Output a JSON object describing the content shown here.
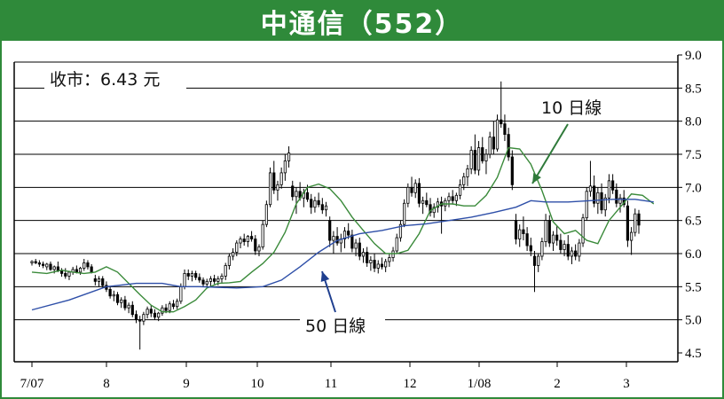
{
  "title": "中通信（552）",
  "chart_data": {
    "type": "candlestick",
    "title": "中通信（552）",
    "close_label": "收市：6.43 元",
    "ylim": [
      4.5,
      9.0
    ],
    "y_ticks": [
      "9.0",
      "8.5",
      "8.0",
      "7.5",
      "7.0",
      "6.5",
      "6.0",
      "5.5",
      "5.0",
      "4.5"
    ],
    "y_tick_values": [
      9.0,
      8.5,
      8.0,
      7.5,
      7.0,
      6.5,
      6.0,
      5.5,
      5.0,
      4.5
    ],
    "x_ticks": [
      "7/07",
      "8",
      "9",
      "10",
      "11",
      "12",
      "1/08",
      "2",
      "3"
    ],
    "grid": "horizontal",
    "series": [
      {
        "name": "10 日線",
        "color": "#3a8a3a",
        "values": [
          [
            0,
            5.72
          ],
          [
            4,
            5.7
          ],
          [
            8,
            5.75
          ],
          [
            11,
            5.72
          ],
          [
            14,
            5.7
          ],
          [
            17,
            5.72
          ],
          [
            20,
            5.8
          ],
          [
            23,
            5.72
          ],
          [
            26,
            5.55
          ],
          [
            29,
            5.38
          ],
          [
            32,
            5.22
          ],
          [
            35,
            5.12
          ],
          [
            38,
            5.12
          ],
          [
            41,
            5.2
          ],
          [
            44,
            5.3
          ],
          [
            47,
            5.48
          ],
          [
            50,
            5.55
          ],
          [
            53,
            5.56
          ],
          [
            56,
            5.58
          ],
          [
            59,
            5.72
          ],
          [
            62,
            5.85
          ],
          [
            65,
            6.02
          ],
          [
            68,
            6.32
          ],
          [
            71,
            6.75
          ],
          [
            74,
            7.0
          ],
          [
            77,
            7.05
          ],
          [
            80,
            6.98
          ],
          [
            83,
            6.8
          ],
          [
            86,
            6.55
          ],
          [
            89,
            6.35
          ],
          [
            92,
            6.15
          ],
          [
            95,
            6.0
          ],
          [
            98,
            6.0
          ],
          [
            101,
            6.05
          ],
          [
            104,
            6.3
          ],
          [
            107,
            6.65
          ],
          [
            110,
            6.75
          ],
          [
            113,
            6.75
          ],
          [
            116,
            6.72
          ],
          [
            119,
            6.72
          ],
          [
            122,
            6.88
          ],
          [
            125,
            7.15
          ],
          [
            128,
            7.6
          ],
          [
            131,
            7.58
          ],
          [
            134,
            7.35
          ],
          [
            137,
            6.95
          ],
          [
            140,
            6.48
          ],
          [
            143,
            6.3
          ],
          [
            146,
            6.35
          ],
          [
            149,
            6.2
          ],
          [
            152,
            6.15
          ],
          [
            155,
            6.5
          ],
          [
            158,
            6.7
          ],
          [
            161,
            6.9
          ],
          [
            164,
            6.88
          ],
          [
            167,
            6.75
          ]
        ]
      },
      {
        "name": "50 日線",
        "color": "#2e4fa8",
        "values": [
          [
            0,
            5.15
          ],
          [
            10,
            5.3
          ],
          [
            20,
            5.5
          ],
          [
            28,
            5.55
          ],
          [
            35,
            5.55
          ],
          [
            40,
            5.5
          ],
          [
            45,
            5.5
          ],
          [
            55,
            5.48
          ],
          [
            62,
            5.5
          ],
          [
            67,
            5.6
          ],
          [
            72,
            5.8
          ],
          [
            77,
            6.02
          ],
          [
            82,
            6.2
          ],
          [
            88,
            6.3
          ],
          [
            94,
            6.35
          ],
          [
            100,
            6.42
          ],
          [
            106,
            6.45
          ],
          [
            112,
            6.5
          ],
          [
            118,
            6.55
          ],
          [
            124,
            6.62
          ],
          [
            130,
            6.7
          ],
          [
            134,
            6.8
          ],
          [
            138,
            6.78
          ],
          [
            144,
            6.78
          ],
          [
            150,
            6.8
          ],
          [
            156,
            6.82
          ],
          [
            162,
            6.82
          ],
          [
            167,
            6.78
          ]
        ]
      }
    ],
    "candles": [
      [
        5.86,
        5.9,
        5.82,
        5.88
      ],
      [
        5.88,
        5.92,
        5.84,
        5.86
      ],
      [
        5.86,
        5.9,
        5.8,
        5.84
      ],
      [
        5.84,
        5.88,
        5.78,
        5.82
      ],
      [
        5.8,
        5.86,
        5.75,
        5.84
      ],
      [
        5.84,
        5.88,
        5.74,
        5.76
      ],
      [
        5.76,
        5.82,
        5.7,
        5.8
      ],
      [
        5.8,
        5.88,
        5.72,
        5.74
      ],
      [
        5.74,
        5.78,
        5.65,
        5.7
      ],
      [
        5.7,
        5.78,
        5.62,
        5.66
      ],
      [
        5.66,
        5.74,
        5.6,
        5.72
      ],
      [
        5.72,
        5.8,
        5.68,
        5.76
      ],
      [
        5.76,
        5.82,
        5.7,
        5.72
      ],
      [
        5.72,
        5.8,
        5.68,
        5.78
      ],
      [
        5.78,
        5.92,
        5.74,
        5.86
      ],
      [
        5.86,
        5.9,
        5.76,
        5.8
      ],
      [
        5.8,
        5.84,
        5.7,
        5.72
      ],
      [
        5.62,
        5.68,
        5.52,
        5.58
      ],
      [
        5.58,
        5.66,
        5.5,
        5.62
      ],
      [
        5.62,
        5.66,
        5.48,
        5.52
      ],
      [
        5.52,
        5.58,
        5.42,
        5.46
      ],
      [
        5.46,
        5.5,
        5.32,
        5.36
      ],
      [
        5.36,
        5.44,
        5.28,
        5.38
      ],
      [
        5.38,
        5.42,
        5.22,
        5.26
      ],
      [
        5.26,
        5.34,
        5.18,
        5.3
      ],
      [
        5.3,
        5.36,
        5.14,
        5.18
      ],
      [
        5.18,
        5.26,
        5.1,
        5.22
      ],
      [
        5.22,
        5.28,
        5.04,
        5.08
      ],
      [
        5.08,
        5.14,
        4.95,
        5.0
      ],
      [
        5.0,
        5.06,
        4.55,
        4.98
      ],
      [
        4.98,
        5.12,
        4.92,
        5.08
      ],
      [
        5.08,
        5.2,
        5.02,
        5.16
      ],
      [
        5.16,
        5.22,
        5.04,
        5.1
      ],
      [
        5.1,
        5.16,
        5.0,
        5.04
      ],
      [
        5.04,
        5.12,
        4.98,
        5.1
      ],
      [
        5.1,
        5.22,
        5.06,
        5.18
      ],
      [
        5.18,
        5.24,
        5.1,
        5.14
      ],
      [
        5.14,
        5.28,
        5.1,
        5.24
      ],
      [
        5.24,
        5.3,
        5.16,
        5.2
      ],
      [
        5.2,
        5.32,
        5.16,
        5.28
      ],
      [
        5.28,
        5.55,
        5.24,
        5.5
      ],
      [
        5.5,
        5.76,
        5.46,
        5.7
      ],
      [
        5.7,
        5.76,
        5.6,
        5.66
      ],
      [
        5.66,
        5.74,
        5.58,
        5.7
      ],
      [
        5.7,
        5.74,
        5.6,
        5.64
      ],
      [
        5.64,
        5.7,
        5.56,
        5.6
      ],
      [
        5.6,
        5.64,
        5.5,
        5.54
      ],
      [
        5.54,
        5.62,
        5.48,
        5.58
      ],
      [
        5.58,
        5.66,
        5.5,
        5.62
      ],
      [
        5.62,
        5.68,
        5.54,
        5.58
      ],
      [
        5.58,
        5.66,
        5.52,
        5.62
      ],
      [
        5.62,
        5.7,
        5.56,
        5.66
      ],
      [
        5.66,
        5.86,
        5.6,
        5.82
      ],
      [
        5.82,
        6.0,
        5.76,
        5.96
      ],
      [
        5.96,
        6.08,
        5.9,
        6.02
      ],
      [
        6.02,
        6.2,
        5.96,
        6.16
      ],
      [
        6.16,
        6.26,
        6.08,
        6.22
      ],
      [
        6.22,
        6.3,
        6.12,
        6.18
      ],
      [
        6.18,
        6.28,
        6.1,
        6.26
      ],
      [
        6.26,
        6.34,
        6.18,
        6.22
      ],
      [
        6.22,
        6.28,
        5.98,
        6.04
      ],
      [
        6.04,
        6.14,
        5.96,
        6.1
      ],
      [
        6.1,
        6.5,
        6.06,
        6.44
      ],
      [
        6.44,
        6.8,
        6.4,
        6.74
      ],
      [
        6.74,
        7.3,
        6.7,
        7.22
      ],
      [
        7.22,
        7.4,
        6.9,
        6.96
      ],
      [
        6.96,
        7.1,
        6.8,
        7.04
      ],
      [
        7.04,
        7.3,
        6.98,
        7.22
      ],
      [
        7.22,
        7.5,
        7.1,
        7.4
      ],
      [
        7.4,
        7.62,
        7.3,
        7.52
      ],
      [
        7.02,
        7.1,
        6.8,
        6.86
      ],
      [
        6.86,
        7.0,
        6.6,
        6.94
      ],
      [
        6.94,
        7.08,
        6.8,
        6.84
      ],
      [
        6.84,
        6.98,
        6.7,
        6.92
      ],
      [
        6.92,
        7.04,
        6.78,
        6.82
      ],
      [
        6.82,
        6.9,
        6.6,
        6.7
      ],
      [
        6.7,
        6.86,
        6.62,
        6.8
      ],
      [
        6.8,
        6.92,
        6.7,
        6.74
      ],
      [
        6.74,
        6.84,
        6.6,
        6.66
      ],
      [
        6.66,
        6.78,
        6.56,
        6.72
      ],
      [
        6.5,
        6.56,
        6.1,
        6.2
      ],
      [
        6.2,
        6.34,
        6.0,
        6.26
      ],
      [
        6.26,
        6.4,
        6.12,
        6.16
      ],
      [
        6.16,
        6.3,
        6.02,
        6.22
      ],
      [
        6.22,
        6.4,
        6.08,
        6.34
      ],
      [
        6.34,
        6.46,
        6.22,
        6.28
      ],
      [
        6.28,
        6.36,
        6.02,
        6.08
      ],
      [
        6.08,
        6.22,
        5.96,
        6.16
      ],
      [
        6.16,
        6.24,
        5.9,
        5.96
      ],
      [
        5.96,
        6.08,
        5.86,
        6.02
      ],
      [
        6.02,
        6.1,
        5.8,
        5.86
      ],
      [
        5.86,
        5.96,
        5.74,
        5.9
      ],
      [
        5.9,
        6.0,
        5.72,
        5.78
      ],
      [
        5.78,
        5.9,
        5.7,
        5.84
      ],
      [
        5.84,
        5.94,
        5.76,
        5.8
      ],
      [
        5.8,
        5.92,
        5.72,
        5.88
      ],
      [
        5.88,
        6.0,
        5.8,
        5.94
      ],
      [
        5.94,
        6.1,
        5.88,
        6.04
      ],
      [
        6.04,
        6.3,
        6.0,
        6.24
      ],
      [
        6.24,
        6.5,
        6.18,
        6.44
      ],
      [
        6.44,
        6.82,
        6.4,
        6.76
      ],
      [
        6.76,
        7.06,
        6.7,
        7.0
      ],
      [
        7.0,
        7.16,
        6.86,
        6.92
      ],
      [
        6.92,
        7.12,
        6.84,
        7.06
      ],
      [
        7.06,
        7.14,
        6.7,
        6.76
      ],
      [
        6.76,
        6.86,
        6.6,
        6.8
      ],
      [
        6.8,
        6.92,
        6.7,
        6.74
      ],
      [
        6.74,
        6.84,
        6.56,
        6.62
      ],
      [
        6.62,
        6.76,
        6.54,
        6.7
      ],
      [
        6.7,
        6.84,
        6.62,
        6.78
      ],
      [
        6.78,
        6.86,
        6.3,
        6.72
      ],
      [
        6.72,
        6.84,
        6.64,
        6.8
      ],
      [
        6.8,
        6.92,
        6.7,
        6.86
      ],
      [
        6.86,
        6.96,
        6.74,
        6.8
      ],
      [
        6.8,
        6.92,
        6.72,
        6.88
      ],
      [
        6.88,
        7.12,
        6.82,
        7.04
      ],
      [
        7.04,
        7.22,
        6.96,
        7.16
      ],
      [
        7.16,
        7.34,
        7.02,
        7.28
      ],
      [
        7.28,
        7.62,
        7.2,
        7.56
      ],
      [
        7.56,
        7.8,
        7.2,
        7.26
      ],
      [
        7.26,
        7.7,
        7.18,
        7.6
      ],
      [
        7.6,
        7.76,
        7.36,
        7.4
      ],
      [
        7.4,
        7.58,
        7.2,
        7.5
      ],
      [
        7.5,
        7.84,
        7.44,
        7.76
      ],
      [
        7.76,
        8.0,
        7.5,
        7.58
      ],
      [
        7.58,
        8.1,
        7.54,
        8.02
      ],
      [
        8.02,
        8.6,
        7.9,
        7.96
      ],
      [
        7.96,
        8.1,
        7.7,
        7.8
      ],
      [
        7.8,
        7.9,
        7.4,
        7.46
      ],
      [
        7.46,
        7.56,
        6.96,
        7.04
      ],
      [
        6.5,
        6.6,
        6.14,
        6.22
      ],
      [
        6.22,
        6.44,
        6.1,
        6.36
      ],
      [
        6.36,
        6.56,
        6.2,
        6.3
      ],
      [
        6.3,
        6.4,
        6.04,
        6.12
      ],
      [
        6.12,
        6.24,
        5.96,
        6.04
      ],
      [
        5.96,
        6.04,
        5.42,
        5.82
      ],
      [
        5.82,
        6.0,
        5.72,
        5.96
      ],
      [
        5.96,
        6.24,
        5.9,
        6.18
      ],
      [
        6.18,
        6.6,
        6.1,
        6.5
      ],
      [
        6.5,
        6.58,
        6.1,
        6.16
      ],
      [
        6.16,
        6.34,
        6.04,
        6.28
      ],
      [
        6.28,
        6.42,
        6.12,
        6.2
      ],
      [
        6.2,
        6.3,
        6.0,
        6.06
      ],
      [
        6.06,
        6.2,
        5.96,
        6.14
      ],
      [
        6.14,
        6.28,
        5.9,
        5.96
      ],
      [
        5.96,
        6.1,
        5.84,
        6.04
      ],
      [
        6.04,
        6.14,
        5.9,
        5.96
      ],
      [
        5.96,
        6.22,
        5.88,
        6.16
      ],
      [
        6.16,
        6.6,
        6.1,
        6.54
      ],
      [
        6.54,
        7.0,
        6.5,
        6.94
      ],
      [
        6.94,
        7.4,
        6.86,
        7.02
      ],
      [
        7.02,
        7.18,
        6.7,
        6.76
      ],
      [
        6.76,
        7.0,
        6.6,
        6.92
      ],
      [
        6.92,
        7.06,
        6.6,
        6.66
      ],
      [
        6.66,
        6.9,
        6.56,
        6.84
      ],
      [
        6.84,
        7.2,
        6.76,
        7.1
      ],
      [
        7.1,
        7.2,
        6.9,
        6.96
      ],
      [
        6.96,
        7.06,
        6.7,
        6.76
      ],
      [
        6.76,
        6.9,
        6.62,
        6.84
      ],
      [
        6.84,
        6.96,
        6.7,
        6.74
      ],
      [
        6.72,
        6.8,
        6.1,
        6.2
      ],
      [
        6.2,
        6.4,
        5.98,
        6.32
      ],
      [
        6.32,
        6.68,
        6.26,
        6.6
      ],
      [
        6.6,
        6.66,
        6.3,
        6.43
      ]
    ]
  }
}
